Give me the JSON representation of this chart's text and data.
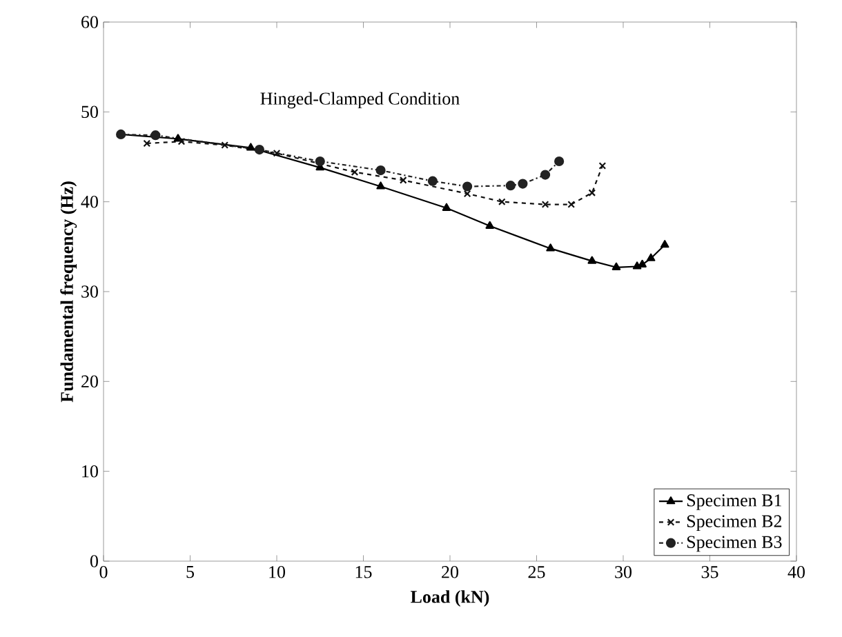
{
  "chart_data": {
    "type": "line",
    "xlabel": "Load (kN)",
    "ylabel": "Fundamental frequency (Hz)",
    "annotations": [
      "Hinged-Clamped Condition"
    ],
    "xlim": [
      0,
      40
    ],
    "xticks": [
      0,
      5,
      10,
      15,
      20,
      25,
      30,
      35,
      40
    ],
    "ylim": [
      0,
      60
    ],
    "yticks": [
      0,
      10,
      20,
      30,
      40,
      50,
      60
    ],
    "legend": "bottom right",
    "grid": false,
    "series": [
      {
        "name": "Specimen B1",
        "color": "#000000",
        "marker": "triangle",
        "line_style": "solid",
        "x": [
          1,
          4.3,
          8.5,
          12.5,
          16,
          19.8,
          22.3,
          25.8,
          28.2,
          29.6,
          30.8,
          31.1,
          31.6,
          32.4
        ],
        "values": [
          47.5,
          47,
          46,
          43.8,
          41.7,
          39.3,
          37.3,
          34.8,
          33.4,
          32.7,
          32.8,
          33,
          33.7,
          35.2
        ]
      },
      {
        "name": "Specimen B2",
        "color": "#111111",
        "marker": "cross",
        "line_style": "dashed",
        "x": [
          2.5,
          4.5,
          7,
          10,
          14.5,
          17.3,
          21,
          23,
          25.5,
          27,
          28.2,
          28.8
        ],
        "values": [
          46.5,
          46.7,
          46.3,
          45.4,
          43.3,
          42.4,
          40.9,
          40,
          39.7,
          39.7,
          41,
          44
        ]
      },
      {
        "name": "Specimen B3",
        "color": "#222222",
        "marker": "circle",
        "line_style": "dashdotted",
        "x": [
          1,
          3,
          9,
          12.5,
          16,
          19,
          21,
          23.5,
          24.2,
          25.5,
          26.3
        ],
        "values": [
          47.5,
          47.4,
          45.8,
          44.5,
          43.5,
          42.3,
          41.7,
          41.8,
          42,
          43,
          44.5
        ]
      }
    ]
  }
}
